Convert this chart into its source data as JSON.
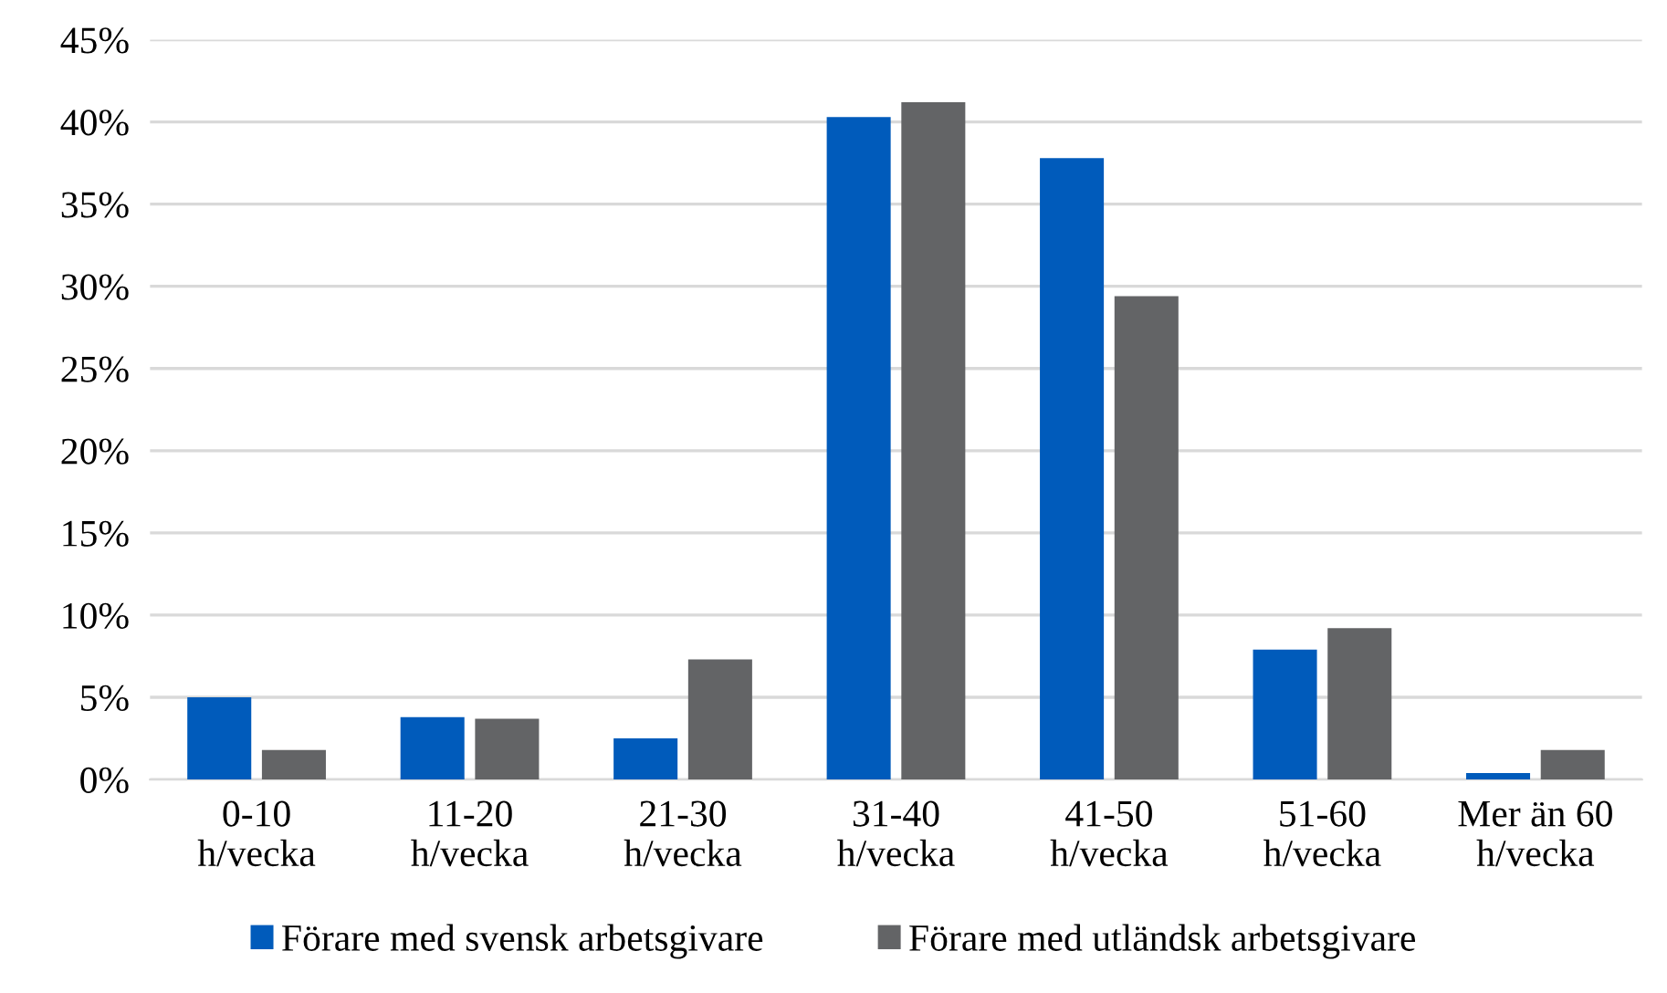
{
  "chart_data": {
    "type": "bar",
    "categories": [
      "0-10\nh/vecka",
      "11-20\nh/vecka",
      "21-30\nh/vecka",
      "31-40\nh/vecka",
      "41-50\nh/vecka",
      "51-60\nh/vecka",
      "Mer än 60\nh/vecka"
    ],
    "series": [
      {
        "name": "Förare med svensk arbetsgivare",
        "color": "#005bbb",
        "values": [
          5.0,
          3.8,
          2.5,
          40.3,
          37.8,
          7.9,
          0.4
        ]
      },
      {
        "name": "Förare med utländsk arbetsgivare",
        "color": "#636466",
        "values": [
          1.8,
          3.7,
          7.3,
          41.2,
          29.4,
          9.2,
          1.8
        ]
      }
    ],
    "ylim": [
      0,
      45
    ],
    "yticks": [
      {
        "value": 0,
        "label": "0%"
      },
      {
        "value": 5,
        "label": "5%"
      },
      {
        "value": 10,
        "label": "10%"
      },
      {
        "value": 15,
        "label": "15%"
      },
      {
        "value": 20,
        "label": "20%"
      },
      {
        "value": 25,
        "label": "25%"
      },
      {
        "value": 30,
        "label": "30%"
      },
      {
        "value": 35,
        "label": "35%"
      },
      {
        "value": 40,
        "label": "40%"
      },
      {
        "value": 45,
        "label": "45%"
      }
    ],
    "grid": "y",
    "legend": "bottom"
  }
}
